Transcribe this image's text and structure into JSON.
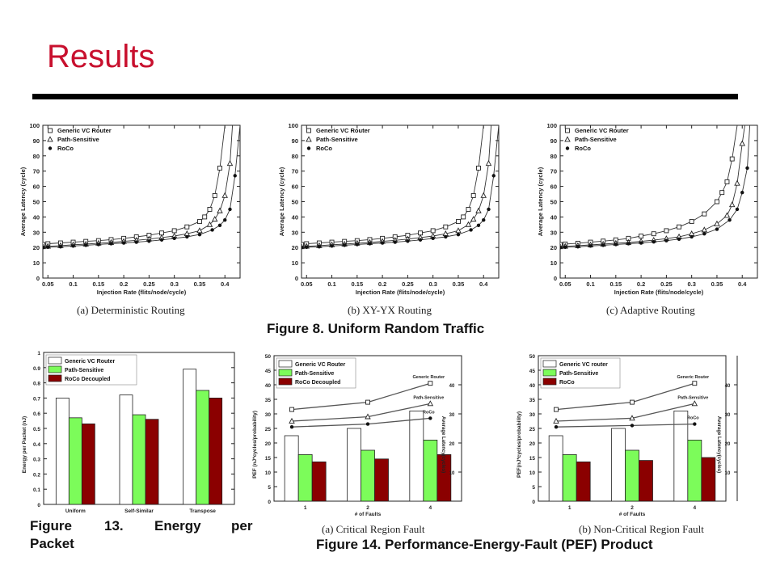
{
  "slide": {
    "title": "Results"
  },
  "figure8": {
    "caption": "Figure 8. Uniform Random Traffic",
    "subcaptions": [
      "(a) Deterministic Routing",
      "(b) XY-YX Routing",
      "(c) Adaptive Routing"
    ]
  },
  "figure13": {
    "caption_words": [
      "Figure",
      "13.",
      "Energy",
      "per"
    ],
    "caption_line2": "Packet"
  },
  "figure14": {
    "caption": "Figure 14. Performance-Energy-Fault (PEF) Product",
    "subcaptions": [
      "(a) Critical Region Fault",
      "(b) Non-Critical Region Fault"
    ]
  },
  "colors": {
    "title": "#c8102e",
    "bar_generic": "#ffffff",
    "bar_path": "#7cfc5a",
    "bar_roco": "#8b0000",
    "line": "#444444"
  },
  "chart_data": [
    {
      "id": "fig8a",
      "type": "line",
      "xlabel": "Injection Rate (flits/node/cycle)",
      "ylabel": "Average Latency (cycle)",
      "xlim": [
        0.04,
        0.43
      ],
      "ylim": [
        0,
        100
      ],
      "xticks": [
        "0.05",
        "0.1",
        "0.15",
        "0.2",
        "0.25",
        "0.3",
        "0.35",
        "0.4"
      ],
      "yticks": [
        "0",
        "10",
        "20",
        "30",
        "40",
        "50",
        "60",
        "70",
        "80",
        "90",
        "100"
      ],
      "grid": false,
      "legend": "top-left",
      "series": [
        {
          "name": "Generic VC Router",
          "marker": "square",
          "x": [
            0.04,
            0.05,
            0.075,
            0.1,
            0.125,
            0.15,
            0.175,
            0.2,
            0.225,
            0.25,
            0.275,
            0.3,
            0.325,
            0.35,
            0.36,
            0.37,
            0.38,
            0.39,
            0.4
          ],
          "y": [
            22,
            22.5,
            23,
            23.5,
            24,
            24.5,
            25.2,
            26,
            27,
            28,
            29.5,
            31,
            33.5,
            37,
            40,
            45,
            54,
            72,
            100
          ]
        },
        {
          "name": "Path-Sensitive",
          "marker": "triangle",
          "x": [
            0.04,
            0.05,
            0.075,
            0.1,
            0.125,
            0.15,
            0.175,
            0.2,
            0.225,
            0.25,
            0.275,
            0.3,
            0.325,
            0.35,
            0.37,
            0.38,
            0.39,
            0.4,
            0.41,
            0.415
          ],
          "y": [
            20.5,
            20.8,
            21.2,
            21.8,
            22.2,
            22.8,
            23.3,
            24,
            24.7,
            25.5,
            26.5,
            27.5,
            29,
            31,
            35,
            38.5,
            44,
            54,
            75,
            100
          ]
        },
        {
          "name": "RoCo",
          "marker": "dot",
          "x": [
            0.04,
            0.05,
            0.075,
            0.1,
            0.125,
            0.15,
            0.175,
            0.2,
            0.225,
            0.25,
            0.275,
            0.3,
            0.325,
            0.35,
            0.375,
            0.39,
            0.4,
            0.41,
            0.42,
            0.43
          ],
          "y": [
            20,
            20.2,
            20.5,
            21,
            21.5,
            22,
            22.5,
            23,
            23.5,
            24.2,
            25,
            26,
            27,
            28.5,
            31.5,
            34.5,
            38,
            45,
            67,
            100
          ]
        }
      ]
    },
    {
      "id": "fig8b",
      "type": "line",
      "xlabel": "Injection Rate (flits/node/cycle)",
      "ylabel": "Average Latency (cycle)",
      "xlim": [
        0.04,
        0.43
      ],
      "ylim": [
        0,
        100
      ],
      "xticks": [
        "0.05",
        "0.1",
        "0.15",
        "0.2",
        "0.25",
        "0.3",
        "0.35",
        "0.4"
      ],
      "yticks": [
        "0",
        "10",
        "20",
        "30",
        "40",
        "50",
        "60",
        "70",
        "80",
        "90",
        "100"
      ],
      "grid": false,
      "legend": "top-left",
      "series": [
        {
          "name": "Generic VC Router",
          "marker": "square",
          "x": [
            0.04,
            0.05,
            0.075,
            0.1,
            0.125,
            0.15,
            0.175,
            0.2,
            0.225,
            0.25,
            0.275,
            0.3,
            0.325,
            0.35,
            0.36,
            0.37,
            0.38,
            0.39,
            0.4
          ],
          "y": [
            22,
            22.5,
            23,
            23.5,
            24,
            24.5,
            25.2,
            26,
            27,
            28,
            29.5,
            31,
            33.5,
            37,
            40,
            45,
            54,
            72,
            100
          ]
        },
        {
          "name": "Path-Sensitive",
          "marker": "triangle",
          "x": [
            0.04,
            0.05,
            0.075,
            0.1,
            0.125,
            0.15,
            0.175,
            0.2,
            0.225,
            0.25,
            0.275,
            0.3,
            0.325,
            0.35,
            0.37,
            0.38,
            0.39,
            0.4,
            0.41,
            0.415
          ],
          "y": [
            20.5,
            20.8,
            21.2,
            21.8,
            22.2,
            22.8,
            23.3,
            24,
            24.7,
            25.5,
            26.5,
            27.5,
            29,
            31,
            35,
            38.5,
            44,
            54,
            75,
            100
          ]
        },
        {
          "name": "RoCo",
          "marker": "dot",
          "x": [
            0.04,
            0.05,
            0.075,
            0.1,
            0.125,
            0.15,
            0.175,
            0.2,
            0.225,
            0.25,
            0.275,
            0.3,
            0.325,
            0.35,
            0.375,
            0.39,
            0.4,
            0.41,
            0.42,
            0.43
          ],
          "y": [
            20,
            20.2,
            20.5,
            21,
            21.5,
            22,
            22.5,
            23,
            23.5,
            24.2,
            25,
            26,
            27,
            28.5,
            31.5,
            34.5,
            38,
            45,
            67,
            100
          ]
        }
      ]
    },
    {
      "id": "fig8c",
      "type": "line",
      "xlabel": "Injection Rate (flits/node/cycle)",
      "ylabel": "Average Latency (cycle)",
      "xlim": [
        0.04,
        0.43
      ],
      "ylim": [
        0,
        100
      ],
      "xticks": [
        "0.05",
        "0.1",
        "0.15",
        "0.2",
        "0.25",
        "0.3",
        "0.35",
        "0.4"
      ],
      "yticks": [
        "0",
        "10",
        "20",
        "30",
        "40",
        "50",
        "60",
        "70",
        "80",
        "90",
        "100"
      ],
      "grid": false,
      "legend": "top-left",
      "series": [
        {
          "name": "Generic VC Router",
          "marker": "square",
          "x": [
            0.04,
            0.05,
            0.075,
            0.1,
            0.125,
            0.15,
            0.175,
            0.2,
            0.225,
            0.25,
            0.275,
            0.3,
            0.325,
            0.35,
            0.36,
            0.37,
            0.38,
            0.39
          ],
          "y": [
            22,
            22.3,
            22.8,
            23.5,
            24.2,
            25,
            26,
            27.5,
            29,
            31,
            33.5,
            37,
            42,
            50,
            56,
            63,
            78,
            100
          ]
        },
        {
          "name": "Path-Sensitive",
          "marker": "triangle",
          "x": [
            0.04,
            0.05,
            0.075,
            0.1,
            0.125,
            0.15,
            0.175,
            0.2,
            0.225,
            0.25,
            0.275,
            0.3,
            0.325,
            0.35,
            0.37,
            0.38,
            0.39,
            0.4,
            0.405
          ],
          "y": [
            20.5,
            20.8,
            21.2,
            21.7,
            22.2,
            22.8,
            23.3,
            24,
            24.8,
            25.8,
            27,
            29,
            31.5,
            35.5,
            41,
            48,
            62,
            88,
            100
          ]
        },
        {
          "name": "RoCo",
          "marker": "dot",
          "x": [
            0.04,
            0.05,
            0.075,
            0.1,
            0.125,
            0.15,
            0.175,
            0.2,
            0.225,
            0.25,
            0.275,
            0.3,
            0.325,
            0.35,
            0.375,
            0.39,
            0.4,
            0.41,
            0.415
          ],
          "y": [
            20,
            20.2,
            20.5,
            21,
            21.5,
            22,
            22.5,
            23,
            23.7,
            24.5,
            25.5,
            27,
            29,
            32,
            38,
            45,
            56,
            72,
            100
          ]
        }
      ]
    },
    {
      "id": "fig13",
      "type": "bar",
      "ylabel": "Energy per Packet (nJ)",
      "categories": [
        "Uniform",
        "Self-Similar",
        "Transpose"
      ],
      "ylim": [
        0,
        1
      ],
      "yticks": [
        "0",
        "0.1",
        "0.2",
        "0.3",
        "0.4",
        "0.5",
        "0.6",
        "0.7",
        "0.8",
        "0.9",
        "1"
      ],
      "legend": "top-left",
      "series": [
        {
          "name": "Generic VC Router",
          "values": [
            0.7,
            0.72,
            0.89
          ]
        },
        {
          "name": "Path-Sensitive",
          "values": [
            0.57,
            0.59,
            0.75
          ]
        },
        {
          "name": "RoCo Decoupled",
          "values": [
            0.53,
            0.56,
            0.7
          ]
        }
      ]
    },
    {
      "id": "fig14a",
      "type": "bar",
      "ylabel": "PEF (nJ*cycles/probability)",
      "y2label": "Average Latency(cycles)",
      "xlabel": "# of Faults",
      "categories": [
        "1",
        "2",
        "4"
      ],
      "ylim": [
        0,
        50
      ],
      "yticks": [
        "0",
        "5",
        "10",
        "15",
        "20",
        "25",
        "30",
        "35",
        "40",
        "45",
        "50"
      ],
      "y2lim": [
        0,
        50
      ],
      "y2ticks": [
        "10",
        "20",
        "30",
        "40"
      ],
      "legend": "top-left",
      "series": [
        {
          "name": "Generic VC Router",
          "values": [
            22.5,
            25,
            31
          ]
        },
        {
          "name": "Path-Sensitive",
          "values": [
            16,
            17.5,
            21
          ]
        },
        {
          "name": "RoCo Decoupled",
          "values": [
            13.5,
            14.5,
            16
          ]
        }
      ],
      "latency_series": [
        {
          "name": "Generic Router",
          "marker": "square",
          "values": [
            31.5,
            34,
            40.5
          ]
        },
        {
          "name": "Path-Sensitive",
          "marker": "triangle",
          "values": [
            27.5,
            29,
            33.5
          ]
        },
        {
          "name": "RoCo",
          "marker": "dot",
          "values": [
            25.5,
            26.5,
            28.5
          ]
        }
      ]
    },
    {
      "id": "fig14b",
      "type": "bar",
      "ylabel": "PEF(nJ*cycles/probability)",
      "y2label": "Average Latency(cycles)",
      "xlabel": "# of Faults",
      "categories": [
        "1",
        "2",
        "4"
      ],
      "ylim": [
        0,
        50
      ],
      "yticks": [
        "0",
        "5",
        "10",
        "15",
        "20",
        "25",
        "30",
        "35",
        "40",
        "45",
        "50"
      ],
      "y2lim": [
        0,
        50
      ],
      "y2ticks": [
        "10",
        "20",
        "30",
        "40"
      ],
      "legend": "top-left",
      "series": [
        {
          "name": "Generic VC router",
          "values": [
            22.5,
            25,
            31
          ]
        },
        {
          "name": "Path-Sensitive",
          "values": [
            16,
            17.5,
            21
          ]
        },
        {
          "name": "RoCo",
          "values": [
            13.5,
            14,
            15
          ]
        }
      ],
      "latency_series": [
        {
          "name": "Generic Router",
          "marker": "square",
          "values": [
            31.5,
            34,
            40.5
          ]
        },
        {
          "name": "Path-Sensitive",
          "marker": "triangle",
          "values": [
            27.5,
            28.5,
            33.5
          ]
        },
        {
          "name": "RoCo",
          "marker": "dot",
          "values": [
            25.5,
            26,
            26.5
          ]
        }
      ]
    }
  ]
}
